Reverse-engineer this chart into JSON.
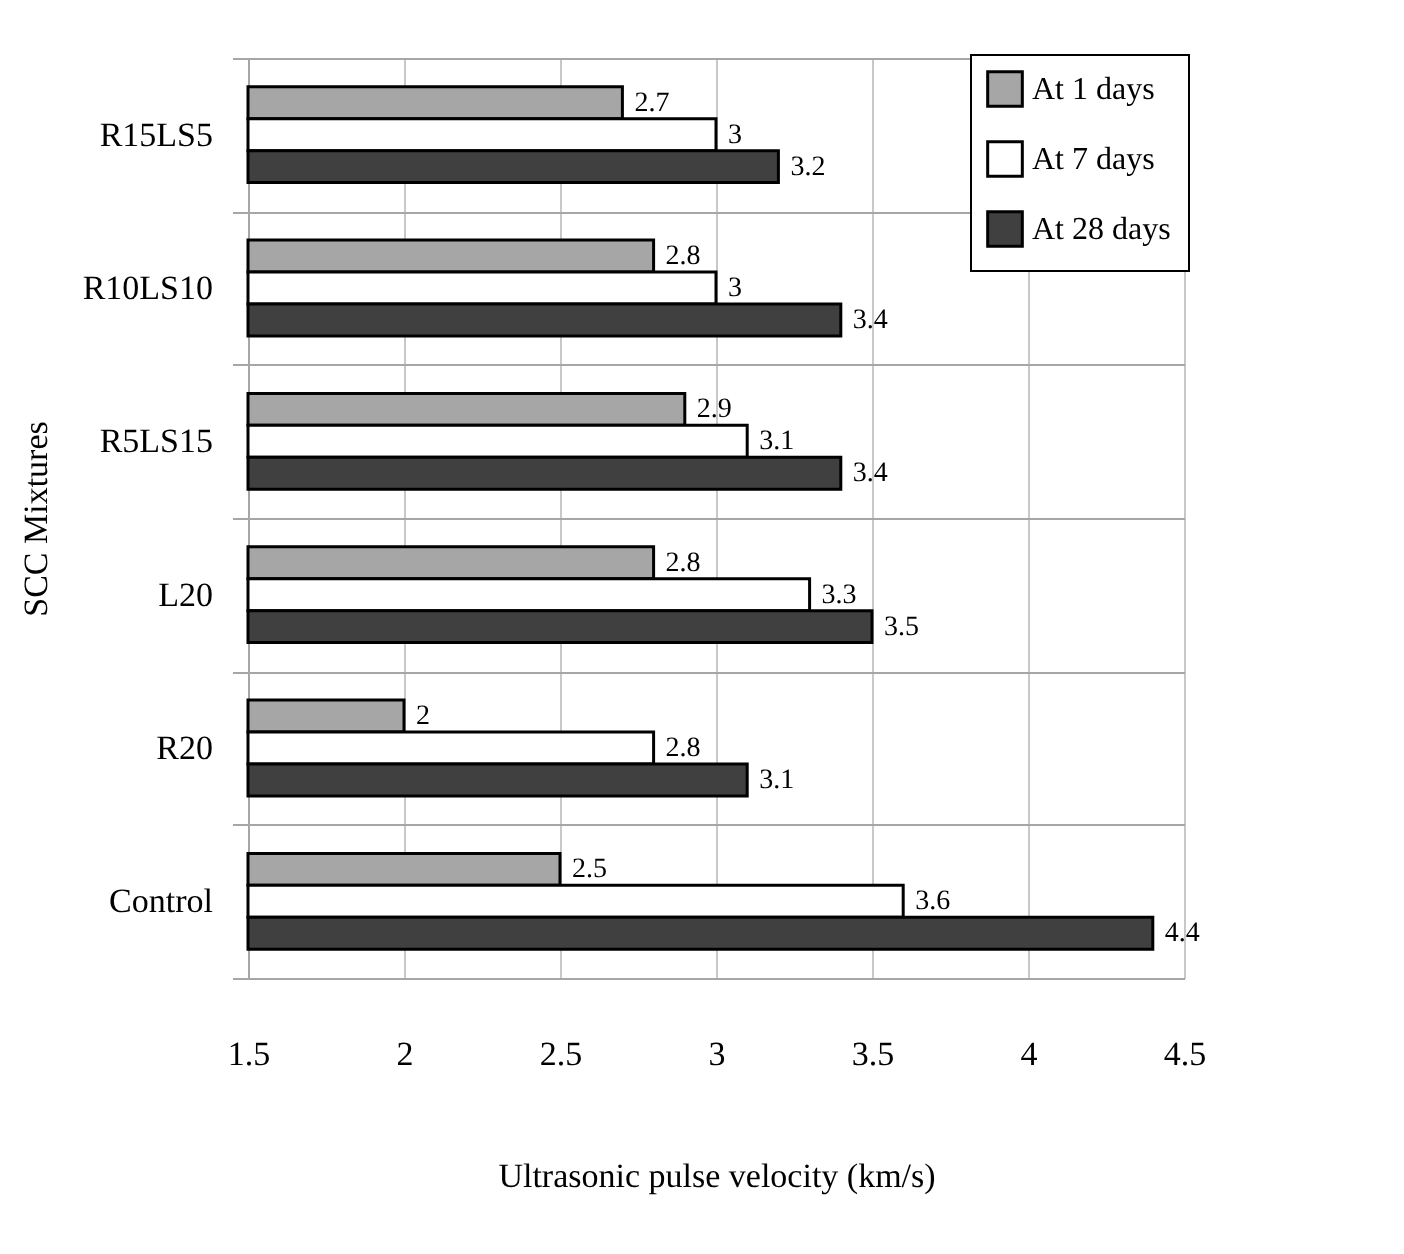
{
  "chart_data": {
    "type": "bar",
    "orientation": "horizontal",
    "xlabel": "Ultrasonic pulse velocity (km/s)",
    "ylabel": "SCC Mixtures",
    "categories": [
      "R15LS5",
      "R10LS10",
      "R5LS15",
      "L20",
      "R20",
      "Control"
    ],
    "series": [
      {
        "name": "At 1 days",
        "color": "#a6a6a6",
        "values": [
          2.7,
          2.8,
          2.9,
          2.8,
          2,
          2.5
        ]
      },
      {
        "name": "At 7 days",
        "color": "#ffffff",
        "values": [
          3,
          3,
          3.1,
          3.3,
          2.8,
          3.6
        ]
      },
      {
        "name": "At 28 days",
        "color": "#404040",
        "values": [
          3.2,
          3.4,
          3.4,
          3.5,
          3.1,
          4.4
        ]
      }
    ],
    "xlim": [
      1.5,
      4.5
    ],
    "xticks": [
      1.5,
      2,
      2.5,
      3,
      3.5,
      4,
      4.5
    ],
    "grid": true,
    "legend": "top right",
    "data_labels": true
  }
}
